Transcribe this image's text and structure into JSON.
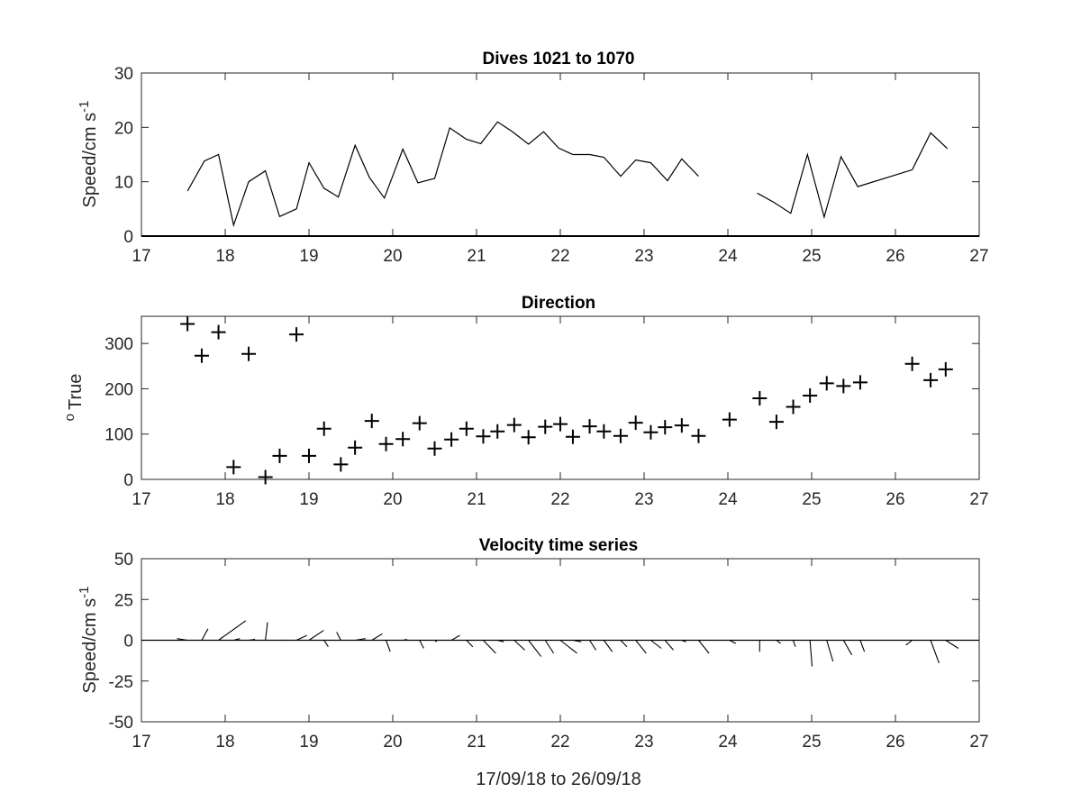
{
  "chart_data": [
    {
      "type": "line",
      "title": "Dives 1021 to 1070",
      "ylabel_main": "Speed/cm s",
      "ylabel_sup": "-1",
      "xlim": [
        17,
        27
      ],
      "ylim": [
        0,
        30
      ],
      "xticks": [
        "17",
        "18",
        "19",
        "20",
        "21",
        "22",
        "23",
        "24",
        "25",
        "26",
        "27"
      ],
      "yticks": [
        "0",
        "10",
        "20",
        "30"
      ],
      "series": [
        {
          "segments": [
            [
              [
                17.55,
                8.3
              ],
              [
                17.75,
                13.8
              ],
              [
                17.92,
                15
              ],
              [
                18.1,
                2
              ],
              [
                18.28,
                10
              ],
              [
                18.48,
                12
              ],
              [
                18.65,
                3.6
              ],
              [
                18.85,
                5
              ],
              [
                19.0,
                13.5
              ],
              [
                19.18,
                8.8
              ],
              [
                19.35,
                7.2
              ],
              [
                19.55,
                16.7
              ],
              [
                19.72,
                10.8
              ],
              [
                19.9,
                7
              ],
              [
                20.12,
                16
              ],
              [
                20.3,
                9.8
              ],
              [
                20.5,
                10.6
              ],
              [
                20.68,
                19.9
              ],
              [
                20.88,
                17.8
              ],
              [
                21.05,
                17
              ],
              [
                21.25,
                21
              ],
              [
                21.42,
                19.3
              ],
              [
                21.62,
                16.9
              ],
              [
                21.8,
                19.2
              ],
              [
                21.98,
                16.2
              ],
              [
                22.15,
                15
              ],
              [
                22.35,
                15
              ],
              [
                22.52,
                14.5
              ],
              [
                22.72,
                11
              ],
              [
                22.9,
                14
              ],
              [
                23.08,
                13.5
              ],
              [
                23.28,
                10.2
              ],
              [
                23.45,
                14.2
              ],
              [
                23.65,
                11
              ]
            ],
            [
              [
                24.35,
                7.9
              ],
              [
                24.55,
                6.2
              ],
              [
                24.75,
                4.2
              ],
              [
                24.95,
                15
              ],
              [
                25.15,
                3.5
              ],
              [
                25.35,
                14.6
              ],
              [
                25.55,
                9.1
              ],
              [
                26.2,
                12.2
              ],
              [
                26.42,
                19
              ],
              [
                26.62,
                16.1
              ]
            ]
          ]
        }
      ]
    },
    {
      "type": "scatter",
      "title": "Direction",
      "ylabel_main": "True",
      "ylabel_sup": "o",
      "xlim": [
        17,
        27
      ],
      "ylim": [
        0,
        360
      ],
      "xticks": [
        "17",
        "18",
        "19",
        "20",
        "21",
        "22",
        "23",
        "24",
        "25",
        "26",
        "27"
      ],
      "yticks": [
        "0",
        "100",
        "200",
        "300"
      ],
      "points": [
        [
          17.55,
          343
        ],
        [
          17.72,
          273
        ],
        [
          17.92,
          325
        ],
        [
          18.1,
          27
        ],
        [
          18.28,
          277
        ],
        [
          18.48,
          5
        ],
        [
          18.65,
          52
        ],
        [
          18.85,
          320
        ],
        [
          19.0,
          52
        ],
        [
          19.18,
          112
        ],
        [
          19.38,
          33
        ],
        [
          19.55,
          70
        ],
        [
          19.75,
          129
        ],
        [
          19.92,
          78
        ],
        [
          20.12,
          89
        ],
        [
          20.32,
          124
        ],
        [
          20.5,
          68
        ],
        [
          20.7,
          88
        ],
        [
          20.88,
          112
        ],
        [
          21.08,
          95
        ],
        [
          21.25,
          106
        ],
        [
          21.45,
          120
        ],
        [
          21.62,
          93
        ],
        [
          21.82,
          116
        ],
        [
          22.0,
          122
        ],
        [
          22.15,
          94
        ],
        [
          22.35,
          117
        ],
        [
          22.52,
          106
        ],
        [
          22.72,
          96
        ],
        [
          22.9,
          125
        ],
        [
          23.08,
          104
        ],
        [
          23.25,
          115
        ],
        [
          23.45,
          119
        ],
        [
          23.65,
          96
        ],
        [
          24.02,
          132
        ],
        [
          24.38,
          179
        ],
        [
          24.58,
          127
        ],
        [
          24.78,
          160
        ],
        [
          24.98,
          185
        ],
        [
          25.18,
          212
        ],
        [
          25.38,
          206
        ],
        [
          25.58,
          214
        ],
        [
          26.2,
          255
        ],
        [
          26.42,
          219
        ],
        [
          26.6,
          243
        ]
      ]
    },
    {
      "type": "quiver",
      "title": "Velocity time series",
      "ylabel_main": "Speed/cm s",
      "ylabel_sup": "-1",
      "xlabel": "17/09/18 to 26/09/18",
      "xlim": [
        17,
        27
      ],
      "ylim": [
        -50,
        50
      ],
      "xticks": [
        "17",
        "18",
        "19",
        "20",
        "21",
        "22",
        "23",
        "24",
        "25",
        "26",
        "27"
      ],
      "yticks": [
        "50",
        "25",
        "0",
        "-25",
        "-50"
      ],
      "vectors": [
        [
          17.55,
          -0.5,
          1
        ],
        [
          17.72,
          0.3,
          7
        ],
        [
          17.92,
          1.3,
          12
        ],
        [
          18.1,
          0.3,
          1
        ],
        [
          18.28,
          0.3,
          0.5
        ],
        [
          18.48,
          0.1,
          11
        ],
        [
          18.65,
          0.3,
          0
        ],
        [
          18.85,
          0.5,
          3
        ],
        [
          19.0,
          0.7,
          6
        ],
        [
          19.18,
          0.2,
          -4
        ],
        [
          19.38,
          -0.2,
          5
        ],
        [
          19.55,
          0.5,
          1
        ],
        [
          19.75,
          0.5,
          4
        ],
        [
          19.92,
          0.2,
          -7
        ],
        [
          20.12,
          0.2,
          0.5
        ],
        [
          20.32,
          0.2,
          -5
        ],
        [
          20.5,
          0.1,
          -1
        ],
        [
          20.7,
          0.4,
          3
        ],
        [
          20.88,
          0.3,
          -4
        ],
        [
          21.08,
          0.6,
          -8
        ],
        [
          21.25,
          0.3,
          -1
        ],
        [
          21.45,
          0.5,
          -6
        ],
        [
          21.62,
          0.6,
          -10
        ],
        [
          21.82,
          0.4,
          -8
        ],
        [
          22.0,
          0.8,
          -8
        ],
        [
          22.15,
          0.4,
          -1
        ],
        [
          22.35,
          0.3,
          -6
        ],
        [
          22.52,
          0.4,
          -7
        ],
        [
          22.72,
          0.3,
          -4
        ],
        [
          22.9,
          0.5,
          -8
        ],
        [
          23.08,
          0.5,
          -5
        ],
        [
          23.25,
          0.4,
          -6
        ],
        [
          23.45,
          0.2,
          -1
        ],
        [
          23.65,
          0.5,
          -8
        ],
        [
          24.02,
          0.3,
          -2
        ],
        [
          24.38,
          0.0,
          -7
        ],
        [
          24.58,
          0.2,
          -2
        ],
        [
          24.78,
          0.1,
          -4
        ],
        [
          24.98,
          0.1,
          -16
        ],
        [
          25.18,
          0.3,
          -13
        ],
        [
          25.38,
          0.4,
          -9
        ],
        [
          25.58,
          0.2,
          -7
        ],
        [
          26.2,
          -0.3,
          -3
        ],
        [
          26.42,
          0.4,
          -14
        ],
        [
          26.6,
          0.6,
          -5
        ]
      ]
    }
  ]
}
